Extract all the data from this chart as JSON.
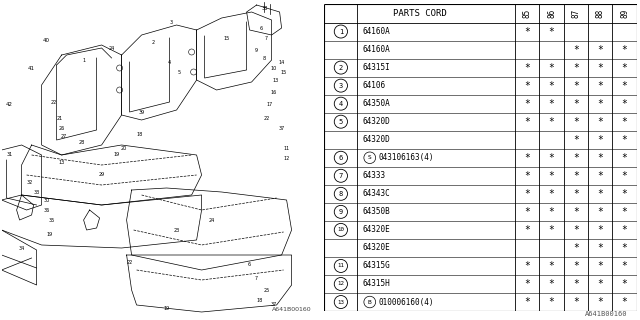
{
  "title": "",
  "footer": "A641B00160",
  "table_header": "PARTS CORD",
  "year_cols": [
    "85",
    "86",
    "87",
    "88",
    "89"
  ],
  "rows": [
    {
      "num": "1",
      "part": "64160A",
      "marks": [
        true,
        true,
        false,
        false,
        false
      ]
    },
    {
      "num": "",
      "part": "64160A",
      "marks": [
        false,
        false,
        true,
        true,
        true
      ]
    },
    {
      "num": "2",
      "part": "64315I",
      "marks": [
        true,
        true,
        true,
        true,
        true
      ]
    },
    {
      "num": "3",
      "part": "64106",
      "marks": [
        true,
        true,
        true,
        true,
        true
      ]
    },
    {
      "num": "4",
      "part": "64350A",
      "marks": [
        true,
        true,
        true,
        true,
        true
      ]
    },
    {
      "num": "5",
      "part": "64320D",
      "marks": [
        true,
        true,
        true,
        true,
        true
      ]
    },
    {
      "num": "",
      "part": "64320D",
      "marks": [
        false,
        false,
        true,
        true,
        true
      ]
    },
    {
      "num": "6",
      "part": "S043106163(4)",
      "marks": [
        true,
        true,
        true,
        true,
        true
      ]
    },
    {
      "num": "7",
      "part": "64333",
      "marks": [
        true,
        true,
        true,
        true,
        true
      ]
    },
    {
      "num": "8",
      "part": "64343C",
      "marks": [
        true,
        true,
        true,
        true,
        true
      ]
    },
    {
      "num": "9",
      "part": "64350B",
      "marks": [
        true,
        true,
        true,
        true,
        true
      ]
    },
    {
      "num": "10",
      "part": "64320E",
      "marks": [
        true,
        true,
        true,
        true,
        true
      ]
    },
    {
      "num": "",
      "part": "64320E",
      "marks": [
        false,
        false,
        true,
        true,
        true
      ]
    },
    {
      "num": "11",
      "part": "64315G",
      "marks": [
        true,
        true,
        true,
        true,
        true
      ]
    },
    {
      "num": "12",
      "part": "64315H",
      "marks": [
        true,
        true,
        true,
        true,
        true
      ]
    },
    {
      "num": "13",
      "part": "B010006160(4)",
      "marks": [
        true,
        true,
        true,
        true,
        true
      ]
    }
  ],
  "bg_color": "#ffffff",
  "line_color": "#000000",
  "text_color": "#000000"
}
